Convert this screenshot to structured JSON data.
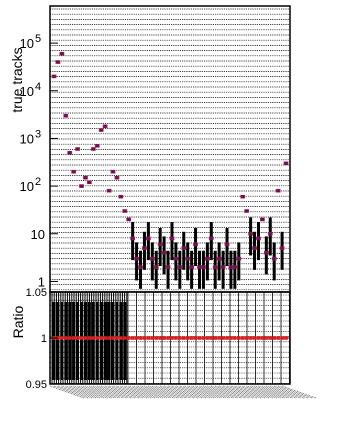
{
  "chart_data": [
    {
      "type": "scatter",
      "panel": "main",
      "ylabel": "true tracks",
      "yscale": "log",
      "ylim": [
        0.6,
        600000
      ],
      "yticks": [
        {
          "value": 1,
          "label": "1"
        },
        {
          "value": 10,
          "label": "10"
        },
        {
          "value": 100,
          "label": "10",
          "exp": "2"
        },
        {
          "value": 1000,
          "label": "10",
          "exp": "3"
        },
        {
          "value": 10000,
          "label": "10",
          "exp": "4"
        },
        {
          "value": 100000,
          "label": "10",
          "exp": "5"
        }
      ],
      "grid": true,
      "series": [
        {
          "color": "#4a1a7a",
          "marker": "dot",
          "values": [
            20000,
            40000,
            60000,
            3000,
            500,
            200,
            600,
            100,
            150,
            120,
            600,
            700,
            1500,
            1800,
            80,
            200,
            150,
            60,
            30,
            20,
            8,
            3,
            2,
            5,
            8,
            3,
            2,
            6,
            4,
            2,
            8,
            3,
            2,
            5,
            3,
            2,
            6,
            2,
            2,
            3,
            8,
            2,
            3,
            2,
            6,
            2,
            2,
            3,
            60,
            30,
            10,
            5,
            8,
            20,
            4,
            10,
            3,
            80,
            5,
            300
          ]
        },
        {
          "color": "#d42020",
          "marker": "dot",
          "values": [
            20000,
            40000,
            60000,
            3000,
            500,
            200,
            600,
            100,
            150,
            120,
            600,
            700,
            1500,
            1800,
            80,
            200,
            150,
            60,
            30,
            20,
            8,
            3,
            2,
            5,
            8,
            3,
            2,
            6,
            4,
            2,
            8,
            3,
            2,
            5,
            3,
            2,
            6,
            2,
            2,
            3,
            8,
            2,
            3,
            2,
            6,
            2,
            2,
            3,
            60,
            30,
            10,
            5,
            8,
            20,
            4,
            10,
            3,
            80,
            5,
            300
          ]
        }
      ]
    },
    {
      "type": "scatter",
      "panel": "ratio",
      "ylabel": "Ratio",
      "ylim": [
        0.95,
        1.05
      ],
      "yticks": [
        {
          "value": 0.95,
          "label": "0.95"
        },
        {
          "value": 1,
          "label": "1"
        },
        {
          "value": 1.05,
          "label": "1.05"
        }
      ],
      "reference_line": 1,
      "grid": true,
      "series": [
        {
          "color": "#d42020",
          "values": [
            1,
            1,
            1,
            1,
            1,
            1,
            1,
            1,
            1,
            1,
            1,
            1,
            1,
            1,
            1,
            1,
            1,
            1,
            1,
            1,
            1,
            1,
            1,
            1,
            1,
            1,
            1,
            1,
            1,
            1,
            1,
            1,
            1,
            1,
            1,
            1,
            1,
            1,
            1,
            1,
            1,
            1,
            1,
            1,
            1,
            1,
            1,
            1,
            1,
            1,
            1,
            1,
            1,
            1,
            1,
            1,
            1,
            1,
            1,
            1
          ]
        }
      ]
    }
  ]
}
